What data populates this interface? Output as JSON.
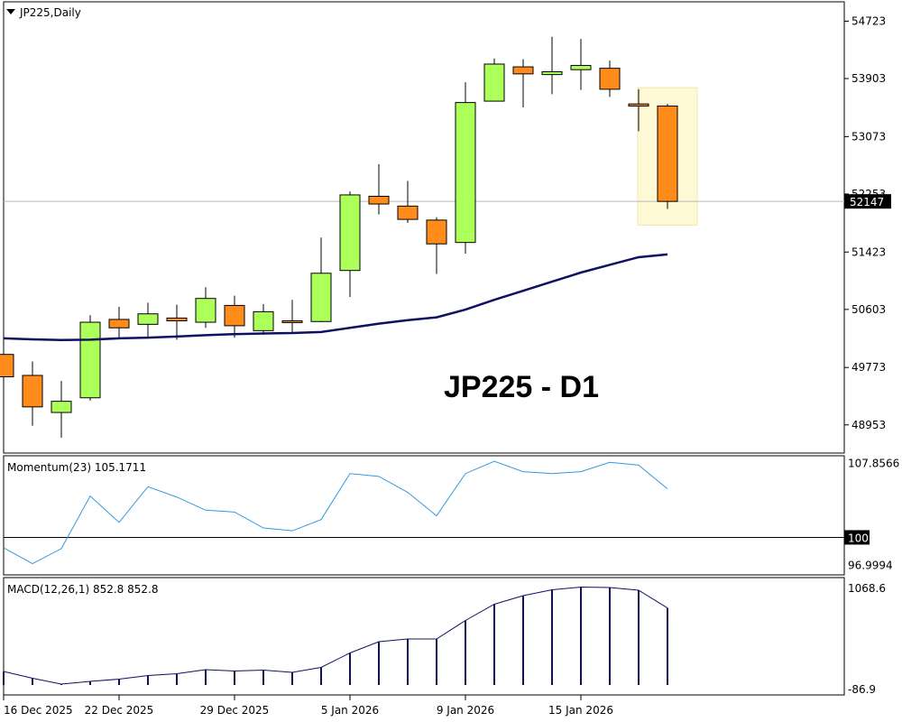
{
  "chart_title": "JP225,Daily",
  "watermark": "JP225 - D1",
  "colors": {
    "bull": "#adff5a",
    "bear": "#ff8c1a",
    "ma": "#101060",
    "momentum": "#3399dd",
    "macd": "#101060",
    "highlight": "#fff8d4"
  },
  "chart_data": [
    {
      "type": "candlestick",
      "title": "JP225,Daily",
      "y_ticks": [
        "54723",
        "53903",
        "53073",
        "52253",
        "51423",
        "50603",
        "49773",
        "48953"
      ],
      "ylim": [
        48550,
        55000
      ],
      "last_price_label": "52147",
      "last_price": 52147,
      "x_tick_labels": [
        {
          "label": "16 Dec 2025",
          "index": 0
        },
        {
          "label": "22 Dec 2025",
          "index": 4
        },
        {
          "label": "29 Dec 2025",
          "index": 8
        },
        {
          "label": "5 Jan 2026",
          "index": 12
        },
        {
          "label": "9 Jan 2026",
          "index": 16
        },
        {
          "label": "15 Jan 2026",
          "index": 20
        }
      ],
      "candles": [
        {
          "o": 49960,
          "h": 50140,
          "l": 49390,
          "c": 49640
        },
        {
          "o": 49660,
          "h": 49860,
          "l": 48940,
          "c": 49210
        },
        {
          "o": 49130,
          "h": 49580,
          "l": 48770,
          "c": 49290
        },
        {
          "o": 49340,
          "h": 50520,
          "l": 49300,
          "c": 50420
        },
        {
          "o": 50460,
          "h": 50640,
          "l": 50200,
          "c": 50340
        },
        {
          "o": 50390,
          "h": 50700,
          "l": 50210,
          "c": 50540
        },
        {
          "o": 50480,
          "h": 50670,
          "l": 50170,
          "c": 50440
        },
        {
          "o": 50420,
          "h": 50920,
          "l": 50340,
          "c": 50760
        },
        {
          "o": 50660,
          "h": 50800,
          "l": 50200,
          "c": 50370
        },
        {
          "o": 50300,
          "h": 50680,
          "l": 50240,
          "c": 50570
        },
        {
          "o": 50440,
          "h": 50740,
          "l": 50260,
          "c": 50420
        },
        {
          "o": 50430,
          "h": 51630,
          "l": 50420,
          "c": 51120
        },
        {
          "o": 51160,
          "h": 52290,
          "l": 50780,
          "c": 52240
        },
        {
          "o": 52220,
          "h": 52680,
          "l": 51960,
          "c": 52110
        },
        {
          "o": 52080,
          "h": 52440,
          "l": 51840,
          "c": 51890
        },
        {
          "o": 51880,
          "h": 51920,
          "l": 51110,
          "c": 51540
        },
        {
          "o": 51560,
          "h": 53850,
          "l": 51400,
          "c": 53560
        },
        {
          "o": 53580,
          "h": 54190,
          "l": 53580,
          "c": 54110
        },
        {
          "o": 54070,
          "h": 54180,
          "l": 53490,
          "c": 53970
        },
        {
          "o": 53960,
          "h": 54500,
          "l": 53680,
          "c": 54000
        },
        {
          "o": 54030,
          "h": 54470,
          "l": 53740,
          "c": 54090
        },
        {
          "o": 54050,
          "h": 54160,
          "l": 53640,
          "c": 53750
        },
        {
          "o": 53540,
          "h": 53750,
          "l": 53150,
          "c": 53510
        },
        {
          "o": 53510,
          "h": 53540,
          "l": 52040,
          "c": 52147
        }
      ],
      "ma": [
        50190,
        50175,
        50165,
        50170,
        50190,
        50200,
        50215,
        50235,
        50250,
        50260,
        50265,
        50280,
        50340,
        50400,
        50450,
        50490,
        50600,
        50740,
        50870,
        51000,
        51130,
        51240,
        51350,
        51390
      ],
      "highlight_index": 23
    },
    {
      "type": "line",
      "title": "Momentum(23) 105.1711",
      "y_ticks": [
        "107.8566",
        "96.9994"
      ],
      "level_label": "100",
      "level": 100,
      "ylim": [
        96.1,
        108.6
      ],
      "values": [
        98.9,
        97.2,
        98.8,
        104.4,
        101.6,
        105.4,
        104.3,
        102.9,
        102.7,
        101.0,
        100.7,
        101.9,
        106.8,
        106.5,
        104.8,
        102.3,
        106.8,
        108.1,
        107.0,
        106.8,
        107.0,
        108.0,
        107.7,
        105.1711
      ]
    },
    {
      "type": "bar",
      "title": "MACD(12,26,1) 852.8 852.8",
      "y_ticks": [
        "1068.6",
        "-86.9"
      ],
      "ylim": [
        -100,
        1180
      ],
      "values": [
        150,
        75,
        10,
        40,
        65,
        105,
        125,
        170,
        155,
        165,
        140,
        195,
        355,
        480,
        510,
        510,
        715,
        895,
        990,
        1055,
        1085,
        1080,
        1050,
        852.8
      ]
    }
  ]
}
